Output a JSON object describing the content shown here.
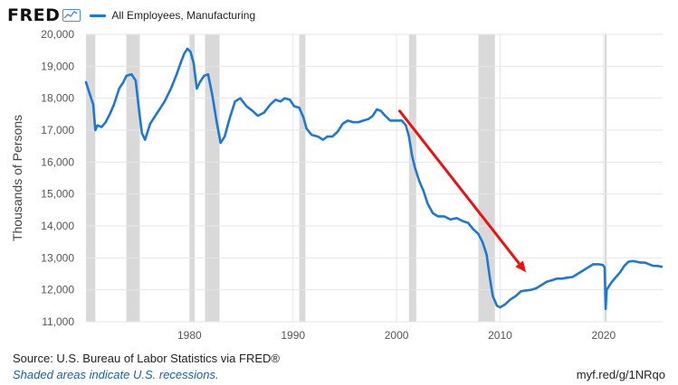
{
  "header": {
    "logo_text": "FRED",
    "logo_icon": "line-chart-icon",
    "series_label": "All Employees, Manufacturing"
  },
  "footer": {
    "source": "Source: U.S. Bureau of Labor Statistics via FRED®",
    "note": "Shaded areas indicate U.S. recessions.",
    "url": "myf.red/g/1NRqo"
  },
  "colors": {
    "line": "#1f77d4",
    "recession": "#d9d9d9",
    "arrow": "#ee1111",
    "plot_background": "#ffffff",
    "grid": "#e6e6e6"
  },
  "chart_data": {
    "type": "line",
    "title": "",
    "xlabel": "",
    "ylabel": "Thousands of Persons",
    "xlim": [
      1970.0,
      2025.7
    ],
    "ylim": [
      11000,
      20000
    ],
    "grid": true,
    "x_ticks": [
      1980,
      1990,
      2000,
      2010,
      2020
    ],
    "x_tick_labels": [
      "1980",
      "1990",
      "2000",
      "2010",
      "2020"
    ],
    "y_ticks": [
      11000,
      12000,
      13000,
      14000,
      15000,
      16000,
      17000,
      18000,
      19000,
      20000
    ],
    "y_tick_labels": [
      "11,000",
      "12,000",
      "13,000",
      "14,000",
      "15,000",
      "16,000",
      "17,000",
      "18,000",
      "19,000",
      "20,000"
    ],
    "legend_position": "top-left",
    "recessions": [
      [
        1969.9,
        1970.9
      ],
      [
        1973.9,
        1975.2
      ],
      [
        1980.0,
        1980.5
      ],
      [
        1981.5,
        1982.9
      ],
      [
        1990.6,
        1991.2
      ],
      [
        2001.2,
        2001.9
      ],
      [
        2007.9,
        2009.5
      ],
      [
        2020.1,
        2020.3
      ]
    ],
    "annotations": [
      {
        "type": "arrow",
        "from": [
          2000.3,
          17600
        ],
        "to": [
          2012.5,
          12550
        ]
      }
    ],
    "series": [
      {
        "name": "All Employees, Manufacturing",
        "x": [
          1970.0,
          1970.3,
          1970.7,
          1970.9,
          1971.1,
          1971.5,
          1971.9,
          1972.3,
          1972.7,
          1973.2,
          1973.6,
          1973.9,
          1974.4,
          1974.8,
          1975.1,
          1975.4,
          1975.7,
          1976.2,
          1976.7,
          1977.2,
          1977.6,
          1978.2,
          1978.7,
          1979.2,
          1979.5,
          1979.8,
          1980.1,
          1980.4,
          1980.7,
          1981.0,
          1981.4,
          1981.8,
          1982.2,
          1982.6,
          1983.0,
          1983.4,
          1983.9,
          1984.4,
          1984.9,
          1985.5,
          1986.1,
          1986.6,
          1987.2,
          1987.8,
          1988.3,
          1988.8,
          1989.2,
          1989.7,
          1990.1,
          1990.6,
          1991.0,
          1991.3,
          1991.8,
          1992.4,
          1992.9,
          1993.3,
          1993.8,
          1994.3,
          1994.8,
          1995.3,
          1995.8,
          1996.3,
          1996.8,
          1997.3,
          1997.7,
          1998.1,
          1998.5,
          1998.9,
          1999.4,
          1999.9,
          2000.5,
          2000.9,
          2001.2,
          2001.5,
          2001.8,
          2002.2,
          2002.6,
          2003.0,
          2003.5,
          2004.0,
          2004.6,
          2005.2,
          2005.8,
          2006.4,
          2006.9,
          2007.4,
          2007.9,
          2008.3,
          2008.7,
          2009.0,
          2009.3,
          2009.7,
          2010.0,
          2010.5,
          2011.0,
          2011.5,
          2012.0,
          2012.5,
          2013.0,
          2013.5,
          2014.0,
          2014.5,
          2015.0,
          2015.5,
          2016.0,
          2016.5,
          2017.0,
          2017.5,
          2018.0,
          2018.5,
          2019.0,
          2019.5,
          2019.9,
          2020.1,
          2020.2,
          2020.3,
          2020.5,
          2020.8,
          2021.2,
          2021.6,
          2022.0,
          2022.4,
          2022.8,
          2023.2,
          2023.6,
          2024.0,
          2024.4,
          2024.8,
          2025.2,
          2025.6
        ],
        "y": [
          18500,
          18200,
          17800,
          17000,
          17150,
          17100,
          17250,
          17500,
          17800,
          18300,
          18500,
          18700,
          18750,
          18550,
          17700,
          16900,
          16700,
          17200,
          17450,
          17700,
          17900,
          18300,
          18700,
          19150,
          19400,
          19550,
          19450,
          19100,
          18300,
          18500,
          18700,
          18750,
          18100,
          17300,
          16600,
          16800,
          17400,
          17900,
          18000,
          17750,
          17600,
          17450,
          17550,
          17800,
          17950,
          17900,
          18000,
          17950,
          17750,
          17700,
          17400,
          17050,
          16850,
          16800,
          16700,
          16800,
          16800,
          16950,
          17200,
          17300,
          17250,
          17250,
          17300,
          17350,
          17450,
          17650,
          17600,
          17450,
          17300,
          17300,
          17300,
          17150,
          16800,
          16200,
          15800,
          15400,
          15100,
          14700,
          14400,
          14300,
          14300,
          14200,
          14250,
          14150,
          14100,
          13900,
          13750,
          13500,
          13100,
          12400,
          11800,
          11500,
          11450,
          11550,
          11700,
          11800,
          11950,
          11980,
          12000,
          12050,
          12150,
          12250,
          12300,
          12350,
          12350,
          12380,
          12400,
          12500,
          12600,
          12700,
          12800,
          12800,
          12780,
          12700,
          11400,
          12000,
          12100,
          12250,
          12400,
          12550,
          12750,
          12880,
          12900,
          12880,
          12850,
          12850,
          12800,
          12750,
          12750,
          12720
        ]
      }
    ]
  }
}
